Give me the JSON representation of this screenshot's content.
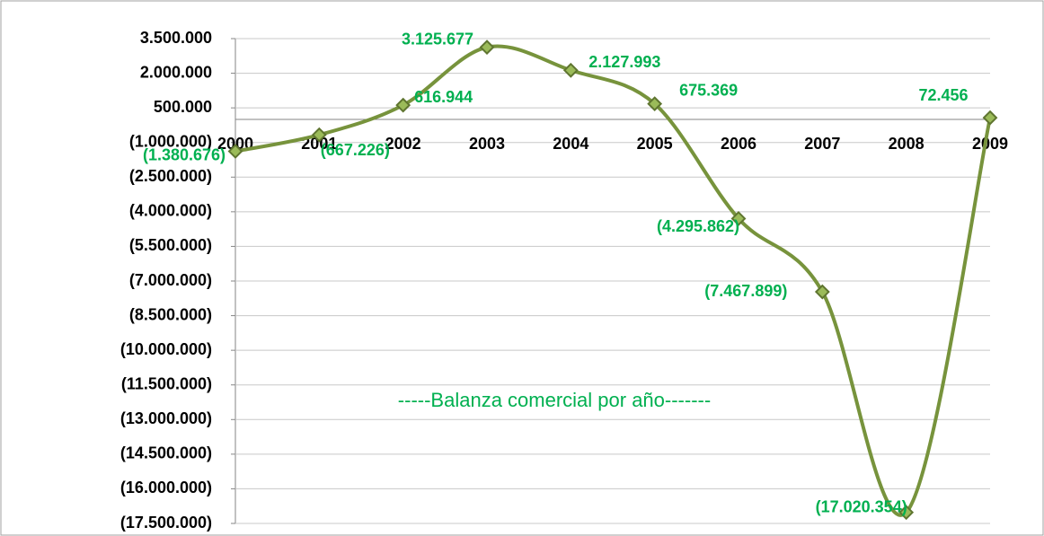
{
  "chart_data": {
    "type": "line",
    "annotation": "-----Balanza comercial por año-------",
    "categories": [
      "2000",
      "2001",
      "2002",
      "2003",
      "2004",
      "2005",
      "2006",
      "2007",
      "2008",
      "2009"
    ],
    "series": [
      {
        "color": "#77933c",
        "values": [
          -1380676,
          -667226,
          616944,
          3125677,
          2127993,
          675369,
          -4295862,
          -7467899,
          -17020354,
          72456
        ],
        "value_labels": [
          "(1.380.676)",
          "(667.226)",
          "616.944",
          "3.125.677",
          "2.127.993",
          "675.369",
          "(4.295.862)",
          "(7.467.899)",
          "(17.020.354)",
          "72.456"
        ]
      }
    ],
    "ylim": [
      -17500000,
      3500000
    ],
    "yticks": [
      {
        "value": 3500000,
        "label": "3.500.000"
      },
      {
        "value": 2000000,
        "label": "2.000.000"
      },
      {
        "value": 500000,
        "label": "500.000"
      },
      {
        "value": -1000000,
        "label": "(1.000.000)"
      },
      {
        "value": -2500000,
        "label": "(2.500.000)"
      },
      {
        "value": -4000000,
        "label": "(4.000.000)"
      },
      {
        "value": -5500000,
        "label": "(5.500.000)"
      },
      {
        "value": -7000000,
        "label": "(7.000.000)"
      },
      {
        "value": -8500000,
        "label": "(8.500.000)"
      },
      {
        "value": -10000000,
        "label": "(10.000.000)"
      },
      {
        "value": -11500000,
        "label": "(11.500.000)"
      },
      {
        "value": -13000000,
        "label": "(13.000.000)"
      },
      {
        "value": -14500000,
        "label": "(14.500.000)"
      },
      {
        "value": -16000000,
        "label": "(16.000.000)"
      },
      {
        "value": -17500000,
        "label": "(17.500.000)"
      }
    ],
    "grid": true
  }
}
